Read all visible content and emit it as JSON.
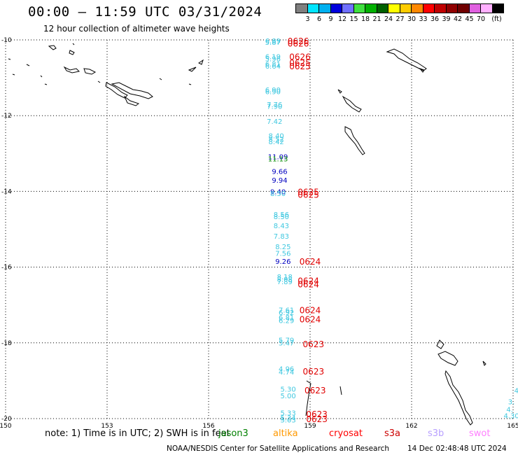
{
  "title": "00:00 – 11:59 UTC 03/31/2024",
  "subtitle": "12 hour collection of altimeter wave heights",
  "colorbar": {
    "colors": [
      "#7f7f7f",
      "#00e5ff",
      "#00b0f0",
      "#0000dd",
      "#7070ff",
      "#40e040",
      "#00b000",
      "#006000",
      "#ffff00",
      "#ffcc00",
      "#ff8800",
      "#ff0000",
      "#c00000",
      "#900000",
      "#700000",
      "#e060e0",
      "#ffb0ff",
      "#000000"
    ],
    "labels": [
      "3",
      "6",
      "9",
      "12",
      "15",
      "18",
      "21",
      "24",
      "27",
      "30",
      "33",
      "36",
      "39",
      "42",
      "45",
      "70",
      "(ft)"
    ],
    "unit": "(ft)"
  },
  "axes": {
    "lon_ticks": [
      "150",
      "153",
      "156",
      "159",
      "162",
      "165"
    ],
    "lat_ticks": [
      "-10",
      "-12",
      "-14",
      "-16",
      "-18",
      "-20"
    ]
  },
  "observations": [
    {
      "lon": 157.9,
      "lat": -10.02,
      "text": "6.89",
      "color": "#40c8e0"
    },
    {
      "lon": 157.9,
      "lat": -10.06,
      "text": "5.87",
      "color": "#40c8e0"
    },
    {
      "lon": 157.9,
      "lat": -10.43,
      "text": "6.19",
      "color": "#40c8e0"
    },
    {
      "lon": 157.9,
      "lat": -10.49,
      "text": "5.96",
      "color": "#40c8e0"
    },
    {
      "lon": 157.9,
      "lat": -10.63,
      "text": "6.81",
      "color": "#40c8e0"
    },
    {
      "lon": 157.9,
      "lat": -10.68,
      "text": "6.64",
      "color": "#40c8e0"
    },
    {
      "lon": 157.9,
      "lat": -11.31,
      "text": "6.90",
      "color": "#40c8e0"
    },
    {
      "lon": 157.9,
      "lat": -11.36,
      "text": "6.90",
      "color": "#40c8e0"
    },
    {
      "lon": 157.95,
      "lat": -11.7,
      "text": "7.76",
      "color": "#40c8e0"
    },
    {
      "lon": 157.95,
      "lat": -11.75,
      "text": "7.90",
      "color": "#40c8e0"
    },
    {
      "lon": 157.95,
      "lat": -12.14,
      "text": "7.42",
      "color": "#40c8e0"
    },
    {
      "lon": 158.0,
      "lat": -12.52,
      "text": "8.40",
      "color": "#40c8e0"
    },
    {
      "lon": 158.0,
      "lat": -12.62,
      "text": "8.52",
      "color": "#40c8e0"
    },
    {
      "lon": 158.0,
      "lat": -12.68,
      "text": "8.42",
      "color": "#40c8e0"
    },
    {
      "lon": 158.05,
      "lat": -13.08,
      "text": "11.09",
      "color": "#0000c0"
    },
    {
      "lon": 158.05,
      "lat": -13.13,
      "text": "11.13",
      "color": "#008800"
    },
    {
      "lon": 158.1,
      "lat": -13.47,
      "text": "9.66",
      "color": "#0000c0"
    },
    {
      "lon": 158.1,
      "lat": -13.7,
      "text": "9.94",
      "color": "#0000c0"
    },
    {
      "lon": 158.05,
      "lat": -14.0,
      "text": "9.40",
      "color": "#0000c0"
    },
    {
      "lon": 158.05,
      "lat": -14.05,
      "text": "8.50",
      "color": "#40c8e0"
    },
    {
      "lon": 158.15,
      "lat": -14.6,
      "text": "8.56",
      "color": "#40c8e0"
    },
    {
      "lon": 158.15,
      "lat": -14.66,
      "text": "8.50",
      "color": "#40c8e0"
    },
    {
      "lon": 158.15,
      "lat": -14.9,
      "text": "8.43",
      "color": "#40c8e0"
    },
    {
      "lon": 158.15,
      "lat": -15.18,
      "text": "7.83",
      "color": "#40c8e0"
    },
    {
      "lon": 158.2,
      "lat": -15.45,
      "text": "8.25",
      "color": "#40c8e0"
    },
    {
      "lon": 158.2,
      "lat": -15.63,
      "text": "7.56",
      "color": "#40c8e0"
    },
    {
      "lon": 158.2,
      "lat": -15.84,
      "text": "9.26",
      "color": "#0000c0"
    },
    {
      "lon": 158.25,
      "lat": -16.25,
      "text": "8.18",
      "color": "#40c8e0"
    },
    {
      "lon": 158.25,
      "lat": -16.31,
      "text": "8.08",
      "color": "#40c8e0"
    },
    {
      "lon": 158.25,
      "lat": -16.38,
      "text": "7.89",
      "color": "#40c8e0"
    },
    {
      "lon": 158.3,
      "lat": -17.13,
      "text": "7.61",
      "color": "#40c8e0"
    },
    {
      "lon": 158.3,
      "lat": -17.19,
      "text": "6.92",
      "color": "#40c8e0"
    },
    {
      "lon": 158.3,
      "lat": -17.32,
      "text": "6.81",
      "color": "#40c8e0"
    },
    {
      "lon": 158.3,
      "lat": -17.4,
      "text": "6.29",
      "color": "#40c8e0"
    },
    {
      "lon": 158.3,
      "lat": -17.92,
      "text": "5.79",
      "color": "#40c8e0"
    },
    {
      "lon": 158.3,
      "lat": -17.99,
      "text": "5.47",
      "color": "#40c8e0"
    },
    {
      "lon": 158.3,
      "lat": -18.68,
      "text": "4.96",
      "color": "#40c8e0"
    },
    {
      "lon": 158.3,
      "lat": -18.76,
      "text": "4.74",
      "color": "#40c8e0"
    },
    {
      "lon": 158.35,
      "lat": -19.21,
      "text": "5.30",
      "color": "#40c8e0"
    },
    {
      "lon": 158.35,
      "lat": -19.39,
      "text": "5.00",
      "color": "#40c8e0"
    },
    {
      "lon": 158.35,
      "lat": -19.84,
      "text": "5.33",
      "color": "#40c8e0"
    },
    {
      "lon": 158.35,
      "lat": -19.97,
      "text": "5.34",
      "color": "#40c8e0"
    },
    {
      "lon": 158.35,
      "lat": -20.03,
      "text": "5.03",
      "color": "#40c8e0"
    },
    {
      "lon": 165.1,
      "lat": -19.25,
      "text": "4",
      "color": "#40c8e0"
    },
    {
      "lon": 164.95,
      "lat": -19.55,
      "text": "3.",
      "color": "#40c8e0"
    },
    {
      "lon": 164.9,
      "lat": -19.75,
      "text": "4.",
      "color": "#40c8e0"
    },
    {
      "lon": 164.95,
      "lat": -19.92,
      "text": "4.30",
      "color": "#40c8e0"
    }
  ],
  "pass_labels": [
    {
      "lon": 158.65,
      "lat": -10.02,
      "text": "0626"
    },
    {
      "lon": 158.65,
      "lat": -10.08,
      "text": "0626"
    },
    {
      "lon": 158.7,
      "lat": -10.43,
      "text": "0626"
    },
    {
      "lon": 158.7,
      "lat": -10.59,
      "text": "0625"
    },
    {
      "lon": 158.7,
      "lat": -10.68,
      "text": "0625"
    },
    {
      "lon": 158.95,
      "lat": -14.0,
      "text": "0625"
    },
    {
      "lon": 158.95,
      "lat": -14.08,
      "text": "0625"
    },
    {
      "lon": 159.0,
      "lat": -15.84,
      "text": "0624"
    },
    {
      "lon": 158.95,
      "lat": -16.35,
      "text": "0624"
    },
    {
      "lon": 158.95,
      "lat": -16.44,
      "text": "0624"
    },
    {
      "lon": 159.0,
      "lat": -17.13,
      "text": "0624"
    },
    {
      "lon": 159.0,
      "lat": -17.37,
      "text": "0624"
    },
    {
      "lon": 159.1,
      "lat": -18.02,
      "text": "0623"
    },
    {
      "lon": 159.1,
      "lat": -18.74,
      "text": "0623"
    },
    {
      "lon": 159.15,
      "lat": -19.24,
      "text": "0623"
    },
    {
      "lon": 159.2,
      "lat": -19.87,
      "text": "0623"
    },
    {
      "lon": 159.2,
      "lat": -20.0,
      "text": "0623"
    }
  ],
  "note": "note:  1) Time is in UTC;  2) SWH is in feet",
  "satellites": [
    {
      "name": "jason3",
      "color": "#008000"
    },
    {
      "name": "altika",
      "color": "#ff9900"
    },
    {
      "name": "cryosat",
      "color": "#ff0000"
    },
    {
      "name": "s3a",
      "color": "#cc0000"
    },
    {
      "name": "s3b",
      "color": "#b8a0ff"
    },
    {
      "name": "swot",
      "color": "#ff80ff"
    }
  ],
  "credit": "NOAA/NESDIS Center for Satellite Applications and Research",
  "timestamp": "14 Dec 02:48:48 UTC 2024"
}
